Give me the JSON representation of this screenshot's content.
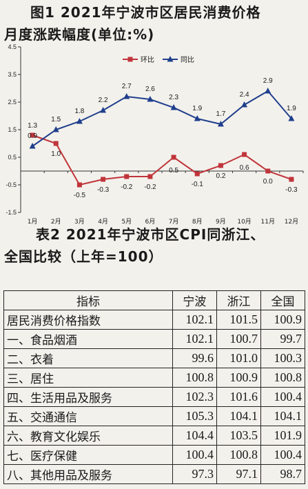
{
  "chart_title_line1": "图1  2021年宁波市区居民消费价格",
  "chart_title_line2": "月度涨跌幅度(单位:%)",
  "chart_data": {
    "type": "line",
    "categories": [
      "1月",
      "2月",
      "3月",
      "4月",
      "5月",
      "6月",
      "7月",
      "8月",
      "9月",
      "10月",
      "11月",
      "12月"
    ],
    "series": [
      {
        "name": "环比",
        "color": "#c0343a",
        "values": [
          1.3,
          1.0,
          -0.5,
          -0.3,
          -0.2,
          -0.2,
          0.5,
          -0.1,
          0.2,
          0.6,
          0.0,
          -0.3
        ]
      },
      {
        "name": "同比",
        "color": "#1f3f8c",
        "values": [
          0.9,
          1.5,
          1.8,
          2.2,
          2.7,
          2.6,
          2.3,
          1.9,
          1.7,
          2.4,
          2.9,
          1.9
        ]
      }
    ],
    "ylim": [
      -1.5,
      4.5
    ],
    "yticks": [
      "-1.5",
      "-0.5",
      "0.5",
      "1.5",
      "2.5",
      "3.5",
      "4.5"
    ],
    "legend": "top-center"
  },
  "table_title_line1": "表2  2021年宁波市区CPI同浙江、",
  "table_title_line2": "全国比较（上年=100）",
  "table": {
    "headers": [
      "指标",
      "宁波",
      "浙江",
      "全国"
    ],
    "rows": [
      [
        "居民消费价格指数",
        "102.1",
        "101.5",
        "100.9"
      ],
      [
        "一、食品烟酒",
        "102.1",
        "100.7",
        "99.7"
      ],
      [
        "二、衣着",
        "99.6",
        "101.0",
        "100.3"
      ],
      [
        "三、居住",
        "100.8",
        "100.9",
        "100.8"
      ],
      [
        "四、生活用品及服务",
        "102.3",
        "101.6",
        "100.4"
      ],
      [
        "五、交通通信",
        "105.3",
        "104.1",
        "104.1"
      ],
      [
        "六、教育文化娱乐",
        "104.4",
        "103.5",
        "101.9"
      ],
      [
        "七、医疗保健",
        "100.4",
        "100.8",
        "100.4"
      ],
      [
        "八、其他用品及服务",
        "97.3",
        "97.1",
        "98.7"
      ]
    ]
  }
}
